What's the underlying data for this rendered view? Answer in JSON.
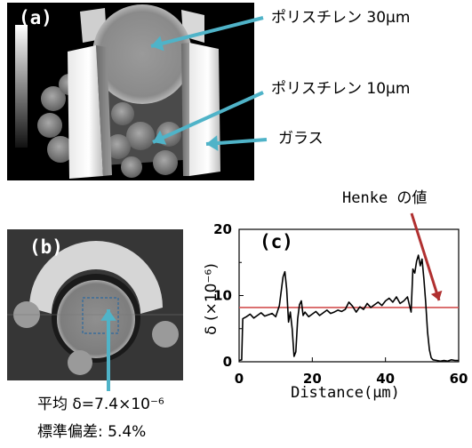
{
  "panel_a": {
    "label": "(a)",
    "annotations": [
      {
        "text": "ポリスチレン 30μm"
      },
      {
        "text": "ポリスチレン 10μm"
      },
      {
        "text": "ガラス"
      }
    ]
  },
  "panel_b": {
    "label": "(b)",
    "stats": {
      "mean": "平均 δ=7.4×10⁻⁶",
      "std": "標準偏差: 5.4%"
    }
  },
  "panel_c": {
    "label": "(c)",
    "henke_label": "Henke の値"
  },
  "colors": {
    "cyan_arrow": "#4fb3c8",
    "red": "#d35050",
    "dark_red_arrow": "#b03030"
  },
  "chart_data": {
    "type": "line",
    "title": "",
    "xlabel": "Distance(μm)",
    "ylabel": "δ (×10⁻⁶)",
    "xlim": [
      0,
      60
    ],
    "ylim": [
      0,
      20
    ],
    "xticks": [
      "0",
      "20",
      "40",
      "60"
    ],
    "yticks": [
      "0",
      "10",
      "20"
    ],
    "reference_line": {
      "y": 8.2
    },
    "series": [
      {
        "x": [
          0,
          0.7,
          1,
          2,
          3,
          4,
          5,
          6,
          7,
          8,
          9,
          10,
          11,
          12,
          12.5,
          13,
          13.5,
          14,
          14.5,
          15,
          15.5,
          16,
          16.5,
          17,
          17.5,
          18,
          19,
          20,
          21,
          22,
          23,
          24,
          25,
          26,
          27,
          28,
          29,
          30,
          31,
          32,
          33,
          34,
          35,
          36,
          37,
          38,
          39,
          40,
          41,
          42,
          43,
          44,
          45,
          46,
          47,
          47.5,
          48,
          48.5,
          49,
          49.5,
          50,
          50.5,
          51,
          51.5,
          52,
          52.5,
          53,
          54,
          55,
          56,
          57,
          58,
          59,
          60
        ],
        "y": [
          0.2,
          0.3,
          6.5,
          6.8,
          7.2,
          6.6,
          7.0,
          7.4,
          6.9,
          7.1,
          7.3,
          6.8,
          8.5,
          12.8,
          13.6,
          11,
          6,
          7.5,
          5,
          0.8,
          1.5,
          6.5,
          8.6,
          9.2,
          7.0,
          7.5,
          6.8,
          7.2,
          7.6,
          7.0,
          7.4,
          7.8,
          7.3,
          7.5,
          7.8,
          7.6,
          7.9,
          9.0,
          8.4,
          7.5,
          8.3,
          7.9,
          8.8,
          8.2,
          8.6,
          9.0,
          8.5,
          9.2,
          9.6,
          9.0,
          9.8,
          8.8,
          9.2,
          9.8,
          7.5,
          14.0,
          13.4,
          15.2,
          16.1,
          14.5,
          15.5,
          12.5,
          9.0,
          4.5,
          1.8,
          0.6,
          0.3,
          0.2,
          0.1,
          0.2,
          0.1,
          0.3,
          0.2,
          0.2
        ]
      }
    ]
  }
}
